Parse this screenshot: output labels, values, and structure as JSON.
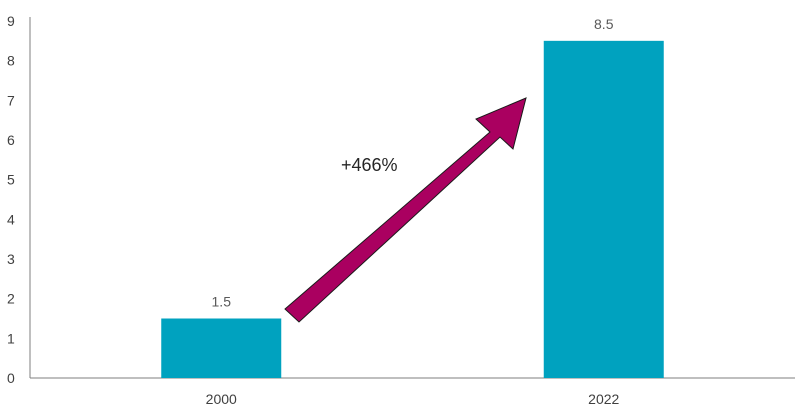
{
  "chart_data": {
    "type": "bar",
    "categories": [
      "2000",
      "2022"
    ],
    "values": [
      1.5,
      8.5
    ],
    "data_labels": [
      "1.5",
      "8.5"
    ],
    "ylim": [
      0,
      9
    ],
    "yticks": [
      "0",
      "1",
      "2",
      "3",
      "4",
      "5",
      "6",
      "7",
      "8",
      "9"
    ],
    "grid": false,
    "legend": "none",
    "title": "",
    "xlabel": "",
    "ylabel": "",
    "bar_color": "#00A2BF",
    "arrow_color": "#AA0060",
    "annotation": "+466%"
  }
}
